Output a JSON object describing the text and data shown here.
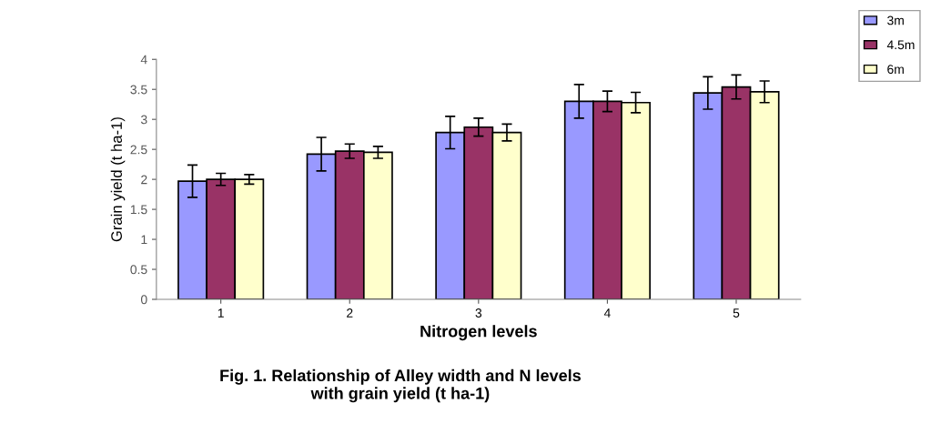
{
  "chart_data": {
    "type": "bar",
    "title": "Fig. 1. Relationship of Alley width and N levels\nwith grain yield (t ha-1)",
    "xlabel": "Nitrogen levels",
    "ylabel": "Grain yield (t ha-1)",
    "categories": [
      "1",
      "2",
      "3",
      "4",
      "5"
    ],
    "series": [
      {
        "name": "3m",
        "color": "#9999ff",
        "values": [
          1.97,
          2.42,
          2.78,
          3.3,
          3.44
        ],
        "errors": [
          0.27,
          0.28,
          0.27,
          0.28,
          0.27
        ]
      },
      {
        "name": "4.5m",
        "color": "#993366",
        "values": [
          2.0,
          2.47,
          2.87,
          3.3,
          3.54
        ],
        "errors": [
          0.1,
          0.12,
          0.15,
          0.17,
          0.2
        ]
      },
      {
        "name": "6m",
        "color": "#ffffcc",
        "values": [
          2.0,
          2.45,
          2.78,
          3.28,
          3.46
        ],
        "errors": [
          0.08,
          0.1,
          0.14,
          0.17,
          0.18
        ]
      }
    ],
    "ylim": [
      0,
      4
    ],
    "yticks": [
      0,
      0.5,
      1,
      1.5,
      2,
      2.5,
      3,
      3.5,
      4
    ],
    "grid": false,
    "legend": "top right"
  }
}
